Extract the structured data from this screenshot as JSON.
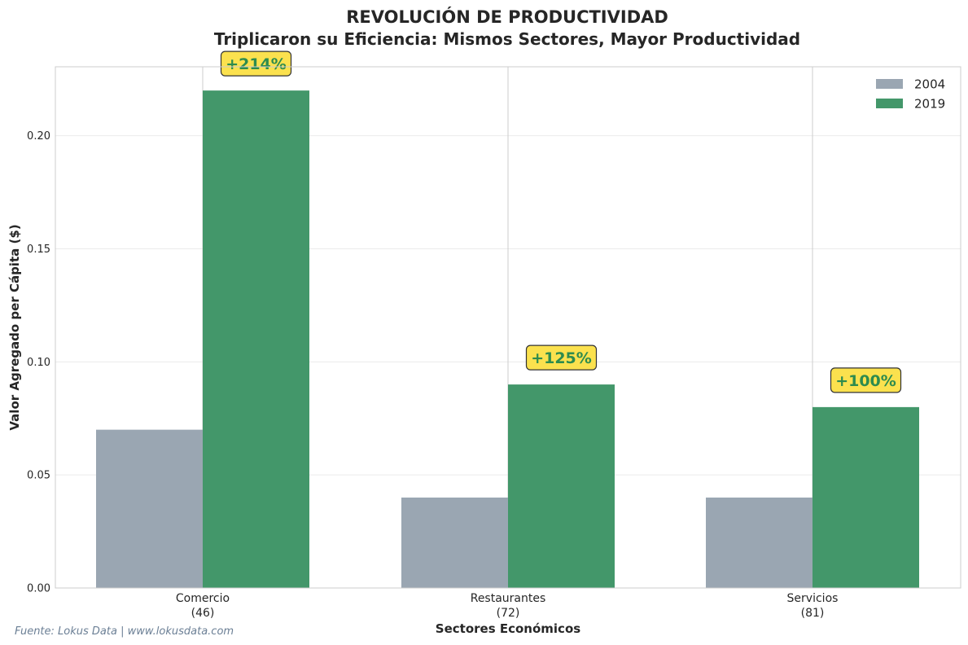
{
  "chart_data": {
    "type": "bar",
    "title": "REVOLUCIÓN DE PRODUCTIVIDAD",
    "subtitle": "Triplicaron su Eficiencia: Mismos Sectores, Mayor Productividad",
    "xlabel": "Sectores Económicos",
    "ylabel": "Valor Agregado per Cápita ($)",
    "ylim": [
      0,
      0.2305
    ],
    "yticks": [
      0.0,
      0.05,
      0.1,
      0.15,
      0.2
    ],
    "ytick_labels": [
      "0.00",
      "0.05",
      "0.10",
      "0.15",
      "0.20"
    ],
    "categories": [
      {
        "name": "Comercio",
        "sub": "(46)"
      },
      {
        "name": "Restaurantes",
        "sub": "(72)"
      },
      {
        "name": "Servicios",
        "sub": "(81)"
      }
    ],
    "series": [
      {
        "name": "2004",
        "color": "#9aa6b2",
        "values": [
          0.07,
          0.04,
          0.04
        ]
      },
      {
        "name": "2019",
        "color": "#43976a",
        "values": [
          0.22,
          0.09,
          0.08
        ]
      }
    ],
    "annotations": [
      "+214%",
      "+125%",
      "+100%"
    ],
    "annotation_style": {
      "fill": "#fbe14e",
      "text_color": "#2e8b4e",
      "border": "#333333"
    },
    "grid": true,
    "legend_position": "top-right",
    "source": "Fuente: Lokus Data | www.lokusdata.com"
  }
}
